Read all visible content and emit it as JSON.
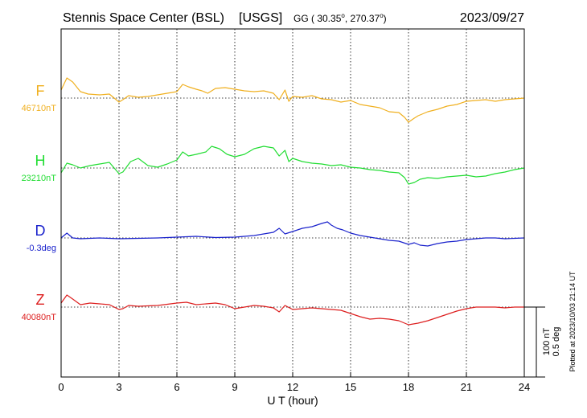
{
  "chart_data": {
    "type": "line",
    "title": "Stennis Space Center (BSL)",
    "network": "[USGS]",
    "coords_prefix": "GG ( 30.35",
    "coords_mid": ", 270.37",
    "coords_suffix": ")",
    "date": "2023/09/27",
    "xlabel": "U T (hour)",
    "xlim": [
      0,
      24
    ],
    "xticks": [
      "0",
      "3",
      "6",
      "9",
      "12",
      "15",
      "18",
      "21",
      "24"
    ],
    "grid": true,
    "scale_label_1": "100 nT",
    "scale_label_2": "0.5 deg",
    "footer": "Plotted at 2023/10/03 21:14 UT",
    "series": [
      {
        "name": "F",
        "baseline": "46710nT",
        "color": "#f0b020",
        "x": [
          0,
          0.3,
          0.6,
          1.0,
          1.4,
          2.0,
          2.5,
          3.0,
          3.2,
          3.5,
          4.0,
          4.5,
          5.0,
          5.5,
          6.0,
          6.3,
          6.6,
          7.0,
          7.3,
          7.6,
          8.0,
          8.5,
          9.0,
          9.5,
          10.0,
          10.5,
          11.0,
          11.3,
          11.6,
          11.8,
          12.0,
          12.5,
          13.0,
          13.5,
          14.0,
          14.5,
          15.0,
          15.5,
          16.0,
          16.5,
          17.0,
          17.5,
          17.8,
          18.0,
          18.3,
          18.5,
          19.0,
          19.5,
          20.0,
          20.5,
          21.0,
          21.5,
          22.0,
          22.5,
          23.0,
          23.5,
          24.0
        ],
        "values": [
          10,
          25,
          20,
          8,
          5,
          4,
          5,
          -5,
          -2,
          3,
          1,
          2,
          4,
          6,
          8,
          17,
          14,
          11,
          9,
          6,
          12,
          13,
          11,
          9,
          8,
          9,
          6,
          -2,
          10,
          -4,
          2,
          1,
          3,
          -1,
          -2,
          -5,
          -3,
          -8,
          -10,
          -12,
          -17,
          -18,
          -24,
          -30,
          -25,
          -22,
          -17,
          -14,
          -10,
          -8,
          -4,
          -3,
          -2,
          -4,
          -2,
          -1,
          0
        ]
      },
      {
        "name": "H",
        "baseline": "23210nT",
        "color": "#22dd33",
        "x": [
          0,
          0.3,
          0.6,
          1.0,
          1.5,
          2.0,
          2.5,
          3.0,
          3.2,
          3.6,
          4.0,
          4.5,
          5.0,
          5.5,
          6.0,
          6.3,
          6.6,
          7.0,
          7.5,
          7.8,
          8.2,
          8.6,
          9.0,
          9.5,
          10.0,
          10.5,
          11.0,
          11.3,
          11.6,
          11.8,
          12.0,
          12.5,
          13.0,
          13.5,
          14.0,
          14.5,
          15.0,
          15.5,
          16.0,
          16.5,
          17.0,
          17.5,
          17.8,
          18.0,
          18.3,
          18.6,
          19.0,
          19.5,
          20.0,
          20.5,
          21.0,
          21.5,
          22.0,
          22.5,
          23.0,
          23.5,
          24.0
        ],
        "values": [
          -6,
          6,
          4,
          0,
          3,
          5,
          7,
          -7,
          -5,
          8,
          12,
          3,
          1,
          5,
          10,
          20,
          15,
          17,
          20,
          27,
          24,
          17,
          14,
          17,
          24,
          27,
          25,
          15,
          22,
          8,
          12,
          8,
          6,
          5,
          3,
          4,
          1,
          0,
          -2,
          -3,
          -5,
          -6,
          -12,
          -20,
          -18,
          -14,
          -12,
          -13,
          -11,
          -10,
          -9,
          -11,
          -10,
          -7,
          -5,
          -2,
          0
        ]
      },
      {
        "name": "D",
        "baseline": "-0.3deg",
        "color": "#1a22cc",
        "x": [
          0,
          0.3,
          0.6,
          1.0,
          2.0,
          3.0,
          4.0,
          5.0,
          6.0,
          7.0,
          8.0,
          9.0,
          10.0,
          10.5,
          11.0,
          11.3,
          11.6,
          12.0,
          12.5,
          13.0,
          13.5,
          13.8,
          14.0,
          14.3,
          14.6,
          15.0,
          15.5,
          16.0,
          16.5,
          17.0,
          17.5,
          18.0,
          18.3,
          18.6,
          19.0,
          19.5,
          20.0,
          20.5,
          21.0,
          21.5,
          22.0,
          22.5,
          23.0,
          23.5,
          24.0
        ],
        "values": [
          0,
          6,
          0,
          -1,
          0,
          -1,
          -0.5,
          0,
          1,
          2,
          0.5,
          1,
          3,
          5,
          7,
          12,
          5,
          8,
          12,
          14,
          18,
          20,
          16,
          12,
          10,
          6,
          3,
          1,
          -1,
          -3,
          -4,
          -8,
          -6,
          -9,
          -10,
          -7,
          -5,
          -4,
          -2,
          -1,
          0,
          0,
          -1,
          -0.5,
          0
        ]
      },
      {
        "name": "Z",
        "baseline": "40080nT",
        "color": "#dd1f1f",
        "x": [
          0,
          0.3,
          0.6,
          1.0,
          1.5,
          2.0,
          2.5,
          3.0,
          3.2,
          3.5,
          4.0,
          5.0,
          6.0,
          6.5,
          7.0,
          7.5,
          8.0,
          8.5,
          9.0,
          9.5,
          10.0,
          10.5,
          11.0,
          11.3,
          11.6,
          12.0,
          12.5,
          13.0,
          13.5,
          14.0,
          14.5,
          15.0,
          15.5,
          16.0,
          16.5,
          17.0,
          17.5,
          18.0,
          18.5,
          19.0,
          19.5,
          20.0,
          20.5,
          21.0,
          21.5,
          22.0,
          22.5,
          23.0,
          23.5,
          24.0
        ],
        "values": [
          5,
          15,
          10,
          3,
          5,
          4,
          3,
          -3,
          -2,
          2,
          1,
          2,
          5,
          6,
          3,
          4,
          5,
          3,
          -2,
          0,
          2,
          1,
          -1,
          -6,
          2,
          -3,
          -2,
          -1,
          -2,
          -3,
          -4,
          -8,
          -12,
          -15,
          -14,
          -15,
          -17,
          -22,
          -20,
          -17,
          -13,
          -9,
          -5,
          -2,
          0,
          0,
          0,
          -1,
          0,
          0
        ]
      }
    ]
  }
}
